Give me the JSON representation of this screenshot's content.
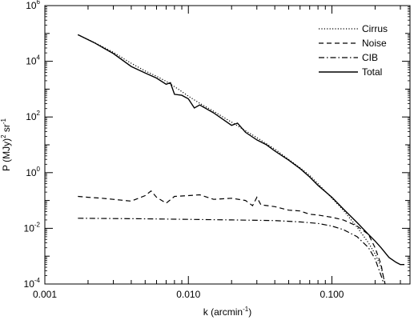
{
  "chart_data": {
    "type": "line",
    "title": "",
    "xlabel": {
      "base": "k (arcmin",
      "sup": "-1",
      "tail": ")"
    },
    "ylabel": {
      "p1": "P (MJy)",
      "sup1": "2",
      "p2": " sr",
      "sup2": "-1"
    },
    "x_scale": "log",
    "y_scale": "log",
    "xlim": [
      0.001,
      0.35
    ],
    "ylim": [
      0.0001,
      1000000
    ],
    "x_ticks": [
      {
        "value": 0.001,
        "label": "0.001"
      },
      {
        "value": 0.01,
        "label": "0.010"
      },
      {
        "value": 0.1,
        "label": "0.100"
      }
    ],
    "y_ticks": [
      {
        "value": 0.0001,
        "base": "10",
        "exp": "-4"
      },
      {
        "value": 0.01,
        "base": "10",
        "exp": "-2"
      },
      {
        "value": 1,
        "base": "10",
        "exp": "0"
      },
      {
        "value": 100,
        "base": "10",
        "exp": "2"
      },
      {
        "value": 10000,
        "base": "10",
        "exp": "4"
      },
      {
        "value": 1000000,
        "base": "10",
        "exp": "6"
      }
    ],
    "grid": false,
    "legend_position": "top-right",
    "series": [
      {
        "name": "Cirrus",
        "dash": "dotted",
        "points": [
          [
            0.0017,
            90000
          ],
          [
            0.0022,
            48000
          ],
          [
            0.003,
            21000
          ],
          [
            0.004,
            8500
          ],
          [
            0.005,
            4500
          ],
          [
            0.006,
            2900
          ],
          [
            0.007,
            1900
          ],
          [
            0.0085,
            1000
          ],
          [
            0.01,
            560
          ],
          [
            0.012,
            310
          ],
          [
            0.015,
            160
          ],
          [
            0.02,
            65
          ],
          [
            0.025,
            32
          ],
          [
            0.03,
            18
          ],
          [
            0.04,
            7
          ],
          [
            0.05,
            3
          ],
          [
            0.06,
            1.5
          ],
          [
            0.07,
            0.8
          ],
          [
            0.08,
            0.4
          ],
          [
            0.1,
            0.12
          ],
          [
            0.12,
            0.045
          ],
          [
            0.15,
            0.011
          ],
          [
            0.18,
            0.003
          ],
          [
            0.2,
            0.0012
          ],
          [
            0.22,
            0.0004
          ],
          [
            0.235,
            0.0001
          ]
        ]
      },
      {
        "name": "Noise",
        "dash": "dashed",
        "points": [
          [
            0.0017,
            0.14
          ],
          [
            0.002,
            0.13
          ],
          [
            0.0025,
            0.12
          ],
          [
            0.003,
            0.11
          ],
          [
            0.004,
            0.095
          ],
          [
            0.005,
            0.15
          ],
          [
            0.0055,
            0.22
          ],
          [
            0.006,
            0.13
          ],
          [
            0.007,
            0.08
          ],
          [
            0.008,
            0.14
          ],
          [
            0.01,
            0.15
          ],
          [
            0.012,
            0.16
          ],
          [
            0.015,
            0.11
          ],
          [
            0.02,
            0.12
          ],
          [
            0.025,
            0.1
          ],
          [
            0.028,
            0.065
          ],
          [
            0.03,
            0.13
          ],
          [
            0.032,
            0.07
          ],
          [
            0.04,
            0.06
          ],
          [
            0.05,
            0.045
          ],
          [
            0.06,
            0.042
          ],
          [
            0.07,
            0.032
          ],
          [
            0.08,
            0.03
          ],
          [
            0.1,
            0.025
          ],
          [
            0.12,
            0.02
          ],
          [
            0.15,
            0.012
          ],
          [
            0.18,
            0.006
          ],
          [
            0.2,
            0.002
          ],
          [
            0.22,
            0.0005
          ],
          [
            0.23,
            0.00015
          ],
          [
            0.235,
            0.0001
          ]
        ]
      },
      {
        "name": "CIB",
        "dash": "dash-dot",
        "points": [
          [
            0.0017,
            0.023
          ],
          [
            0.005,
            0.022
          ],
          [
            0.01,
            0.021
          ],
          [
            0.02,
            0.02
          ],
          [
            0.04,
            0.019
          ],
          [
            0.06,
            0.017
          ],
          [
            0.08,
            0.015
          ],
          [
            0.1,
            0.012
          ],
          [
            0.12,
            0.009
          ],
          [
            0.15,
            0.005
          ],
          [
            0.18,
            0.002
          ],
          [
            0.2,
            0.0008
          ],
          [
            0.22,
            0.0002
          ],
          [
            0.23,
            0.0001
          ]
        ]
      },
      {
        "name": "Total",
        "dash": "solid",
        "points": [
          [
            0.0017,
            90000
          ],
          [
            0.0022,
            47000
          ],
          [
            0.003,
            19000
          ],
          [
            0.004,
            6500
          ],
          [
            0.005,
            3800
          ],
          [
            0.006,
            2500
          ],
          [
            0.007,
            1500
          ],
          [
            0.0075,
            1700
          ],
          [
            0.008,
            650
          ],
          [
            0.009,
            600
          ],
          [
            0.01,
            450
          ],
          [
            0.011,
            210
          ],
          [
            0.012,
            270
          ],
          [
            0.015,
            140
          ],
          [
            0.02,
            50
          ],
          [
            0.022,
            60
          ],
          [
            0.025,
            28
          ],
          [
            0.03,
            15
          ],
          [
            0.035,
            10
          ],
          [
            0.04,
            6
          ],
          [
            0.05,
            2.8
          ],
          [
            0.06,
            1.4
          ],
          [
            0.07,
            0.7
          ],
          [
            0.08,
            0.35
          ],
          [
            0.1,
            0.13
          ],
          [
            0.12,
            0.05
          ],
          [
            0.15,
            0.016
          ],
          [
            0.18,
            0.006
          ],
          [
            0.2,
            0.0035
          ],
          [
            0.22,
            0.002
          ],
          [
            0.25,
            0.0009
          ],
          [
            0.28,
            0.0006
          ],
          [
            0.3,
            0.0005
          ],
          [
            0.32,
            0.0005
          ]
        ]
      }
    ]
  }
}
